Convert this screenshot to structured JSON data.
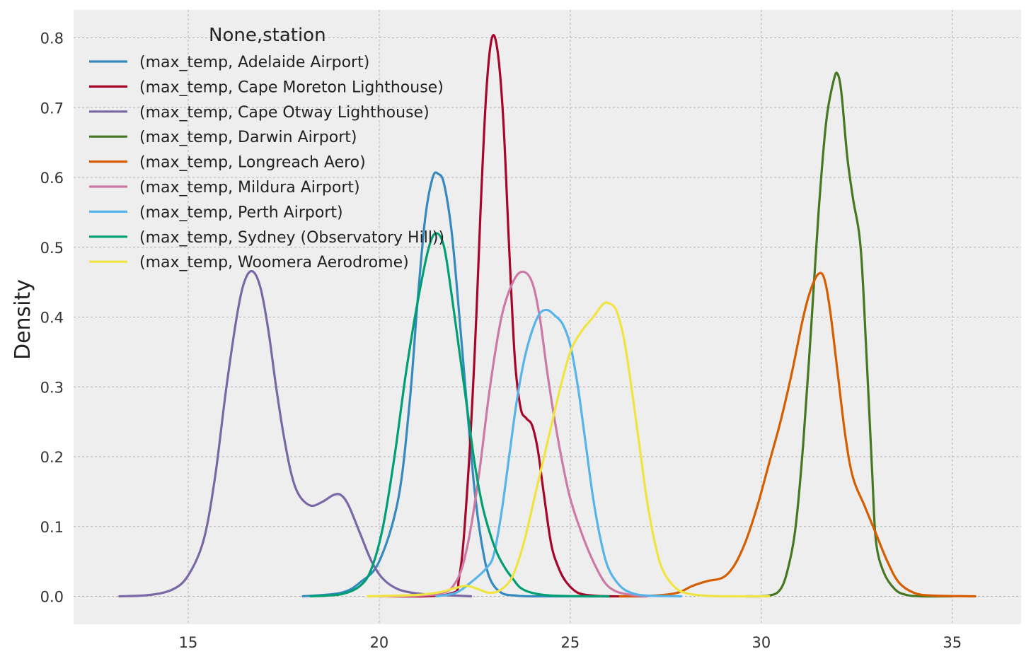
{
  "chart_data": {
    "type": "line",
    "subtype": "kde-density",
    "title": "",
    "xlabel": "",
    "ylabel": "Density",
    "xlim": [
      12.0,
      36.8
    ],
    "ylim": [
      -0.04,
      0.84
    ],
    "xticks": [
      15,
      20,
      25,
      30,
      35
    ],
    "yticks": [
      0.0,
      0.1,
      0.2,
      0.3,
      0.4,
      0.5,
      0.6,
      0.7,
      0.8
    ],
    "grid": true,
    "legend": {
      "title": "None,station",
      "position": "top-left"
    },
    "series": [
      {
        "name": "(max_temp, Adelaide Airport)",
        "color": "#348ABD",
        "points": [
          [
            18.0,
            0.0
          ],
          [
            19.0,
            0.005
          ],
          [
            19.5,
            0.02
          ],
          [
            20.0,
            0.05
          ],
          [
            20.5,
            0.14
          ],
          [
            20.8,
            0.28
          ],
          [
            21.0,
            0.42
          ],
          [
            21.2,
            0.54
          ],
          [
            21.4,
            0.6
          ],
          [
            21.55,
            0.605
          ],
          [
            21.7,
            0.59
          ],
          [
            21.9,
            0.52
          ],
          [
            22.1,
            0.4
          ],
          [
            22.3,
            0.27
          ],
          [
            22.5,
            0.15
          ],
          [
            22.7,
            0.07
          ],
          [
            22.9,
            0.025
          ],
          [
            23.2,
            0.005
          ],
          [
            23.6,
            0.001
          ],
          [
            24.0,
            0.0
          ],
          [
            26.0,
            0.0
          ]
        ]
      },
      {
        "name": "(max_temp, Cape Moreton Lighthouse)",
        "color": "#A60628",
        "points": [
          [
            20.0,
            0.0
          ],
          [
            21.8,
            0.003
          ],
          [
            22.1,
            0.03
          ],
          [
            22.3,
            0.15
          ],
          [
            22.5,
            0.35
          ],
          [
            22.65,
            0.55
          ],
          [
            22.8,
            0.72
          ],
          [
            22.95,
            0.8
          ],
          [
            23.1,
            0.78
          ],
          [
            23.25,
            0.68
          ],
          [
            23.4,
            0.5
          ],
          [
            23.55,
            0.34
          ],
          [
            23.7,
            0.27
          ],
          [
            23.85,
            0.255
          ],
          [
            24.0,
            0.245
          ],
          [
            24.15,
            0.21
          ],
          [
            24.3,
            0.15
          ],
          [
            24.5,
            0.075
          ],
          [
            24.7,
            0.04
          ],
          [
            24.9,
            0.02
          ],
          [
            25.2,
            0.005
          ],
          [
            25.6,
            0.001
          ],
          [
            26.0,
            0.0
          ],
          [
            27.0,
            0.0
          ]
        ]
      },
      {
        "name": "(max_temp, Cape Otway Lighthouse)",
        "color": "#7A68A6",
        "points": [
          [
            13.2,
            0.0
          ],
          [
            14.0,
            0.002
          ],
          [
            14.6,
            0.01
          ],
          [
            15.0,
            0.03
          ],
          [
            15.4,
            0.08
          ],
          [
            15.7,
            0.17
          ],
          [
            16.0,
            0.3
          ],
          [
            16.3,
            0.41
          ],
          [
            16.5,
            0.455
          ],
          [
            16.7,
            0.465
          ],
          [
            16.9,
            0.44
          ],
          [
            17.1,
            0.38
          ],
          [
            17.3,
            0.3
          ],
          [
            17.5,
            0.23
          ],
          [
            17.7,
            0.175
          ],
          [
            17.9,
            0.145
          ],
          [
            18.2,
            0.13
          ],
          [
            18.5,
            0.135
          ],
          [
            18.8,
            0.145
          ],
          [
            19.0,
            0.145
          ],
          [
            19.2,
            0.13
          ],
          [
            19.5,
            0.09
          ],
          [
            19.8,
            0.05
          ],
          [
            20.1,
            0.025
          ],
          [
            20.5,
            0.01
          ],
          [
            21.0,
            0.004
          ],
          [
            21.5,
            0.002
          ],
          [
            22.0,
            0.001
          ],
          [
            22.4,
            0.0
          ]
        ]
      },
      {
        "name": "(max_temp, Darwin Airport)",
        "color": "#467821",
        "points": [
          [
            29.6,
            0.0
          ],
          [
            30.2,
            0.001
          ],
          [
            30.5,
            0.01
          ],
          [
            30.7,
            0.04
          ],
          [
            30.9,
            0.1
          ],
          [
            31.1,
            0.22
          ],
          [
            31.3,
            0.38
          ],
          [
            31.5,
            0.55
          ],
          [
            31.7,
            0.68
          ],
          [
            31.9,
            0.74
          ],
          [
            32.0,
            0.748
          ],
          [
            32.1,
            0.72
          ],
          [
            32.25,
            0.63
          ],
          [
            32.4,
            0.57
          ],
          [
            32.6,
            0.5
          ],
          [
            32.75,
            0.35
          ],
          [
            32.9,
            0.18
          ],
          [
            33.0,
            0.08
          ],
          [
            33.2,
            0.035
          ],
          [
            33.5,
            0.01
          ],
          [
            33.8,
            0.002
          ],
          [
            34.2,
            0.0
          ],
          [
            35.0,
            0.0
          ]
        ]
      },
      {
        "name": "(max_temp, Longreach Aero)",
        "color": "#D55E00",
        "points": [
          [
            26.3,
            0.0
          ],
          [
            27.2,
            0.001
          ],
          [
            27.8,
            0.005
          ],
          [
            28.2,
            0.015
          ],
          [
            28.6,
            0.022
          ],
          [
            29.0,
            0.027
          ],
          [
            29.3,
            0.045
          ],
          [
            29.6,
            0.08
          ],
          [
            29.9,
            0.13
          ],
          [
            30.2,
            0.19
          ],
          [
            30.5,
            0.25
          ],
          [
            30.8,
            0.32
          ],
          [
            31.1,
            0.4
          ],
          [
            31.3,
            0.44
          ],
          [
            31.5,
            0.462
          ],
          [
            31.65,
            0.455
          ],
          [
            31.8,
            0.41
          ],
          [
            32.0,
            0.32
          ],
          [
            32.2,
            0.23
          ],
          [
            32.4,
            0.17
          ],
          [
            32.7,
            0.13
          ],
          [
            33.0,
            0.09
          ],
          [
            33.3,
            0.05
          ],
          [
            33.6,
            0.02
          ],
          [
            34.0,
            0.005
          ],
          [
            34.5,
            0.001
          ],
          [
            35.6,
            0.0
          ]
        ]
      },
      {
        "name": "(max_temp, Mildura Airport)",
        "color": "#CC79A7",
        "points": [
          [
            20.0,
            0.0
          ],
          [
            21.5,
            0.003
          ],
          [
            22.0,
            0.02
          ],
          [
            22.3,
            0.07
          ],
          [
            22.6,
            0.17
          ],
          [
            22.9,
            0.3
          ],
          [
            23.2,
            0.4
          ],
          [
            23.5,
            0.45
          ],
          [
            23.75,
            0.465
          ],
          [
            24.0,
            0.45
          ],
          [
            24.2,
            0.4
          ],
          [
            24.4,
            0.32
          ],
          [
            24.6,
            0.25
          ],
          [
            24.8,
            0.19
          ],
          [
            25.0,
            0.14
          ],
          [
            25.3,
            0.09
          ],
          [
            25.6,
            0.05
          ],
          [
            25.9,
            0.02
          ],
          [
            26.2,
            0.007
          ],
          [
            26.6,
            0.002
          ],
          [
            27.0,
            0.0
          ]
        ]
      },
      {
        "name": "(max_temp, Perth Airport)",
        "color": "#56B4E9",
        "points": [
          [
            21.5,
            0.0
          ],
          [
            22.0,
            0.005
          ],
          [
            22.4,
            0.02
          ],
          [
            22.8,
            0.04
          ],
          [
            23.0,
            0.06
          ],
          [
            23.2,
            0.12
          ],
          [
            23.4,
            0.2
          ],
          [
            23.6,
            0.28
          ],
          [
            23.8,
            0.34
          ],
          [
            24.0,
            0.38
          ],
          [
            24.2,
            0.405
          ],
          [
            24.4,
            0.41
          ],
          [
            24.6,
            0.402
          ],
          [
            24.8,
            0.39
          ],
          [
            25.0,
            0.36
          ],
          [
            25.2,
            0.3
          ],
          [
            25.4,
            0.22
          ],
          [
            25.6,
            0.14
          ],
          [
            25.8,
            0.08
          ],
          [
            26.0,
            0.04
          ],
          [
            26.3,
            0.015
          ],
          [
            26.6,
            0.005
          ],
          [
            27.0,
            0.001
          ],
          [
            27.9,
            0.0
          ]
        ]
      },
      {
        "name": "(max_temp, Sydney (Observatory Hill))",
        "color": "#009E73",
        "points": [
          [
            18.2,
            0.0
          ],
          [
            19.0,
            0.003
          ],
          [
            19.5,
            0.015
          ],
          [
            19.8,
            0.04
          ],
          [
            20.1,
            0.1
          ],
          [
            20.4,
            0.2
          ],
          [
            20.7,
            0.32
          ],
          [
            21.0,
            0.42
          ],
          [
            21.3,
            0.5
          ],
          [
            21.5,
            0.52
          ],
          [
            21.7,
            0.5
          ],
          [
            21.9,
            0.43
          ],
          [
            22.1,
            0.35
          ],
          [
            22.3,
            0.27
          ],
          [
            22.5,
            0.19
          ],
          [
            22.7,
            0.13
          ],
          [
            22.9,
            0.09
          ],
          [
            23.1,
            0.06
          ],
          [
            23.3,
            0.04
          ],
          [
            23.5,
            0.025
          ],
          [
            23.7,
            0.012
          ],
          [
            24.0,
            0.005
          ],
          [
            24.5,
            0.001
          ],
          [
            25.5,
            0.0
          ],
          [
            26.0,
            0.0
          ]
        ]
      },
      {
        "name": "(max_temp, Woomera Aerodrome)",
        "color": "#F0E442",
        "points": [
          [
            19.7,
            0.0
          ],
          [
            21.0,
            0.002
          ],
          [
            21.6,
            0.006
          ],
          [
            22.0,
            0.012
          ],
          [
            22.3,
            0.015
          ],
          [
            22.6,
            0.01
          ],
          [
            22.9,
            0.005
          ],
          [
            23.2,
            0.01
          ],
          [
            23.5,
            0.03
          ],
          [
            23.8,
            0.08
          ],
          [
            24.1,
            0.15
          ],
          [
            24.4,
            0.22
          ],
          [
            24.7,
            0.29
          ],
          [
            25.0,
            0.35
          ],
          [
            25.3,
            0.38
          ],
          [
            25.6,
            0.4
          ],
          [
            25.85,
            0.418
          ],
          [
            26.0,
            0.42
          ],
          [
            26.2,
            0.41
          ],
          [
            26.4,
            0.37
          ],
          [
            26.6,
            0.3
          ],
          [
            26.8,
            0.22
          ],
          [
            27.0,
            0.14
          ],
          [
            27.2,
            0.08
          ],
          [
            27.4,
            0.04
          ],
          [
            27.7,
            0.015
          ],
          [
            28.0,
            0.005
          ],
          [
            28.5,
            0.001
          ],
          [
            29.0,
            0.0
          ],
          [
            30.2,
            0.0
          ]
        ]
      }
    ]
  }
}
